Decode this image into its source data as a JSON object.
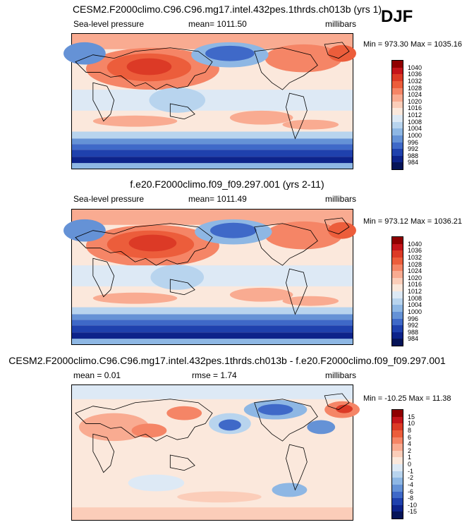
{
  "season": "DJF",
  "panels": [
    {
      "title": "CESM2.F2000climo.C96.C96.mg17.intel.432pes.1thrds.ch013b (yrs 1)",
      "left_label": "Sea-level pressure",
      "center_label": "mean= 1011.50",
      "right_label": "millibars",
      "minmax": "Min = 973.30 Max = 1035.16"
    },
    {
      "title": "f.e20.F2000climo.f09_f09.297.001 (yrs 2-11)",
      "left_label": "Sea-level pressure",
      "center_label": "mean= 1011.49",
      "right_label": "millibars",
      "minmax": "Min = 973.12 Max = 1036.21"
    },
    {
      "title": "CESM2.F2000climo.C96.C96.mg17.intel.432pes.1thrds.ch013b - f.e20.F2000climo.f09_f09.297.001",
      "left_label": "mean =   0.01",
      "center_label": "rmse =   1.74",
      "right_label": "millibars",
      "minmax": "Min = -10.25 Max =  11.38"
    }
  ],
  "colorbars": [
    {
      "ticks": [
        "1040",
        "1036",
        "1032",
        "1028",
        "1024",
        "1020",
        "1016",
        "1012",
        "1008",
        "1004",
        "1000",
        "996",
        "992",
        "988",
        "984"
      ],
      "colors": [
        "#8f0000",
        "#c4141a",
        "#dc3a26",
        "#ec5d3b",
        "#f58566",
        "#f9ab91",
        "#fbcdb9",
        "#fbe8dc",
        "#dde9f5",
        "#b8d4ee",
        "#8eb7e4",
        "#6592d6",
        "#3f69c8",
        "#1f41ad",
        "#0d238a",
        "#061458"
      ]
    },
    {
      "ticks": [
        "1040",
        "1036",
        "1032",
        "1028",
        "1024",
        "1020",
        "1016",
        "1012",
        "1008",
        "1004",
        "1000",
        "996",
        "992",
        "988",
        "984"
      ],
      "colors": [
        "#8f0000",
        "#c4141a",
        "#dc3a26",
        "#ec5d3b",
        "#f58566",
        "#f9ab91",
        "#fbcdb9",
        "#fbe8dc",
        "#dde9f5",
        "#b8d4ee",
        "#8eb7e4",
        "#6592d6",
        "#3f69c8",
        "#1f41ad",
        "#0d238a",
        "#061458"
      ]
    },
    {
      "ticks": [
        "15",
        "10",
        "8",
        "6",
        "4",
        "2",
        "1",
        "0",
        "-1",
        "-2",
        "-4",
        "-6",
        "-8",
        "-10",
        "-15"
      ],
      "colors": [
        "#8f0000",
        "#c4141a",
        "#dc3a26",
        "#ec5d3b",
        "#f58566",
        "#f9ab91",
        "#fbcdb9",
        "#fbe8dc",
        "#dde9f5",
        "#b8d4ee",
        "#8eb7e4",
        "#6592d6",
        "#3f69c8",
        "#1f41ad",
        "#0d238a",
        "#061458"
      ]
    }
  ],
  "chart_data": [
    {
      "type": "heatmap",
      "title": "CESM2.F2000climo.C96.C96.mg17.intel.432pes.1thrds.ch013b (yrs 1)",
      "variable": "Sea-level pressure",
      "units": "millibars",
      "mean": 1011.5,
      "min": 973.3,
      "max": 1035.16,
      "contour_levels": [
        984,
        988,
        992,
        996,
        1000,
        1004,
        1008,
        1012,
        1016,
        1020,
        1024,
        1028,
        1032,
        1036,
        1040
      ]
    },
    {
      "type": "heatmap",
      "title": "f.e20.F2000climo.f09_f09.297.001 (yrs 2-11)",
      "variable": "Sea-level pressure",
      "units": "millibars",
      "mean": 1011.49,
      "min": 973.12,
      "max": 1036.21,
      "contour_levels": [
        984,
        988,
        992,
        996,
        1000,
        1004,
        1008,
        1012,
        1016,
        1020,
        1024,
        1028,
        1032,
        1036,
        1040
      ]
    },
    {
      "type": "heatmap",
      "title": "CESM2.F2000climo.C96.C96.mg17.intel.432pes.1thrds.ch013b - f.e20.F2000climo.f09_f09.297.001",
      "units": "millibars",
      "mean": 0.01,
      "rmse": 1.74,
      "min": -10.25,
      "max": 11.38,
      "contour_levels": [
        -15,
        -10,
        -8,
        -6,
        -4,
        -2,
        -1,
        0,
        1,
        2,
        4,
        6,
        8,
        10,
        15
      ]
    }
  ]
}
